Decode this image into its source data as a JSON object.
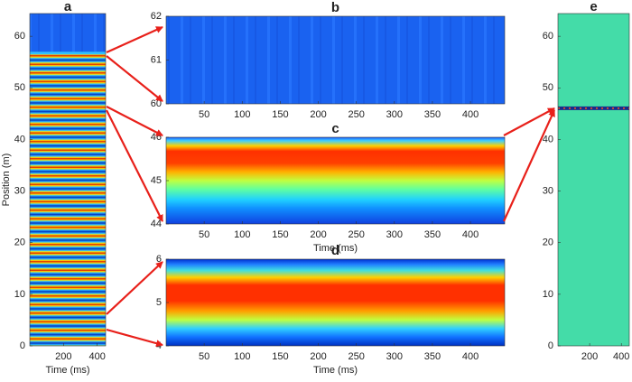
{
  "chart_data": [
    {
      "type": "heatmap",
      "title": "a",
      "xlabel": "Time (ms)",
      "ylabel": "Position (m)",
      "xlim": [
        0,
        450
      ],
      "ylim": [
        0,
        64.4
      ],
      "xticks": [
        200,
        400
      ],
      "yticks": [
        0,
        10,
        20,
        30,
        40,
        50,
        60
      ]
    },
    {
      "type": "heatmap",
      "title": "b",
      "xlim": [
        0,
        445
      ],
      "ylim": [
        60,
        62
      ],
      "xticks": [
        50,
        100,
        150,
        200,
        250,
        300,
        350,
        400
      ],
      "yticks": [
        60,
        61,
        62
      ]
    },
    {
      "type": "heatmap",
      "title": "c",
      "xlabel": "Time (ms)",
      "xlim": [
        0,
        445
      ],
      "ylim": [
        44,
        46
      ],
      "xticks": [
        50,
        100,
        150,
        200,
        250,
        300,
        350,
        400
      ],
      "yticks": [
        44,
        45,
        46
      ]
    },
    {
      "type": "heatmap",
      "title": "d",
      "xlabel": "Time (ms)",
      "xlim": [
        0,
        445
      ],
      "ylim": [
        4,
        6
      ],
      "xticks": [
        50,
        100,
        150,
        200,
        250,
        300,
        350,
        400
      ],
      "yticks": [
        4,
        5,
        6
      ]
    },
    {
      "type": "heatmap",
      "title": "e",
      "xlim": [
        0,
        450
      ],
      "ylim": [
        0,
        64.4
      ],
      "xticks": [
        200,
        400
      ],
      "yticks": [
        0,
        10,
        20,
        30,
        40,
        50,
        60
      ]
    }
  ]
}
